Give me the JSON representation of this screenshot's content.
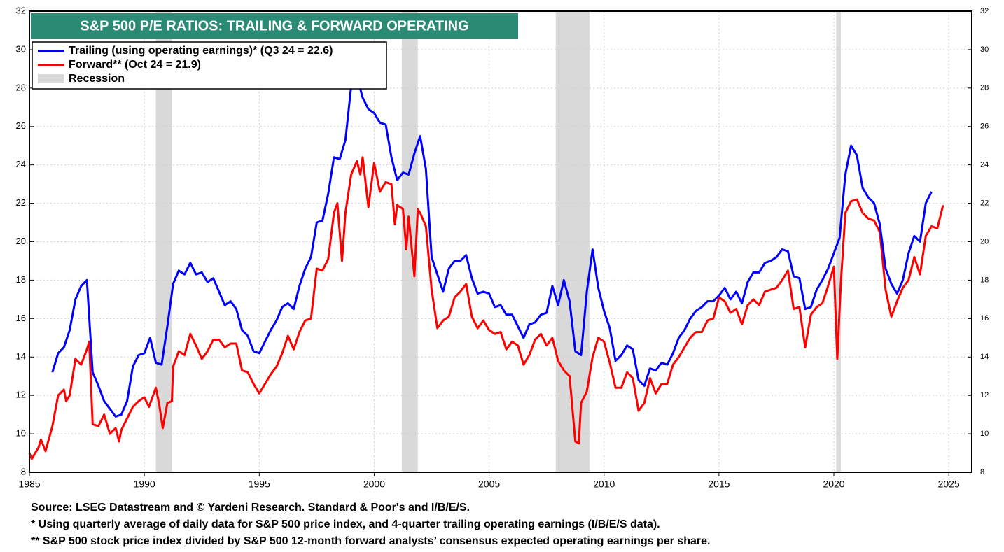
{
  "chart_data": {
    "type": "line",
    "title": "S&P 500 P/E RATIOS: TRAILING & FORWARD OPERATING",
    "recession_label": "Recession",
    "recession_color": "#d9d9d9",
    "recessions": [
      [
        1990.5,
        1991.2
      ],
      [
        2001.2,
        2001.9
      ],
      [
        2007.9,
        2009.4
      ],
      [
        2020.1,
        2020.3
      ]
    ],
    "notes": [
      "Source: LSEG Datastream and © Yardeni Research. Standard & Poor's and I/B/E/S.",
      "* Using quarterly average of daily data for S&P 500 price index, and 4-quarter trailing operating earnings (I/B/E/S data).",
      "** S&P 500 stock price index divided by S&P 500 12-month forward analysts’ consensus expected operating earnings per share."
    ],
    "xlim": [
      1985,
      2026
    ],
    "xticks": [
      1985,
      1990,
      1995,
      2000,
      2005,
      2010,
      2015,
      2020,
      2025
    ],
    "ylim": [
      8,
      32
    ],
    "yticks": [
      8,
      10,
      12,
      14,
      16,
      18,
      20,
      22,
      24,
      26,
      28,
      30,
      32
    ],
    "y2lim": [
      8,
      32
    ],
    "y2ticks": [
      8,
      10,
      12,
      14,
      16,
      18,
      20,
      22,
      24,
      26,
      28,
      30,
      32
    ],
    "grid": true,
    "series": [
      {
        "name": "Trailing (using operating earnings)* (Q3 24 = 22.6)",
        "color": "#0000ff",
        "x": [
          1986.0,
          1986.25,
          1986.5,
          1986.75,
          1987.0,
          1987.25,
          1987.5,
          1987.75,
          1988.0,
          1988.25,
          1988.5,
          1988.75,
          1989.0,
          1989.25,
          1989.5,
          1989.75,
          1990.0,
          1990.25,
          1990.5,
          1990.75,
          1991.0,
          1991.25,
          1991.5,
          1991.75,
          1992.0,
          1992.25,
          1992.5,
          1992.75,
          1993.0,
          1993.25,
          1993.5,
          1993.75,
          1994.0,
          1994.25,
          1994.5,
          1994.75,
          1995.0,
          1995.25,
          1995.5,
          1995.75,
          1996.0,
          1996.25,
          1996.5,
          1996.75,
          1997.0,
          1997.25,
          1997.5,
          1997.75,
          1998.0,
          1998.25,
          1998.5,
          1998.75,
          1999.0,
          1999.25,
          1999.5,
          1999.75,
          2000.0,
          2000.25,
          2000.5,
          2000.75,
          2001.0,
          2001.25,
          2001.5,
          2001.75,
          2002.0,
          2002.25,
          2002.5,
          2002.75,
          2003.0,
          2003.25,
          2003.5,
          2003.75,
          2004.0,
          2004.25,
          2004.5,
          2004.75,
          2005.0,
          2005.25,
          2005.5,
          2005.75,
          2006.0,
          2006.25,
          2006.5,
          2006.75,
          2007.0,
          2007.25,
          2007.5,
          2007.75,
          2008.0,
          2008.25,
          2008.5,
          2008.75,
          2009.0,
          2009.25,
          2009.5,
          2009.75,
          2010.0,
          2010.25,
          2010.5,
          2010.75,
          2011.0,
          2011.25,
          2011.5,
          2011.75,
          2012.0,
          2012.25,
          2012.5,
          2012.75,
          2013.0,
          2013.25,
          2013.5,
          2013.75,
          2014.0,
          2014.25,
          2014.5,
          2014.75,
          2015.0,
          2015.25,
          2015.5,
          2015.75,
          2016.0,
          2016.25,
          2016.5,
          2016.75,
          2017.0,
          2017.25,
          2017.5,
          2017.75,
          2018.0,
          2018.25,
          2018.5,
          2018.75,
          2019.0,
          2019.25,
          2019.5,
          2019.75,
          2020.0,
          2020.25,
          2020.5,
          2020.75,
          2021.0,
          2021.25,
          2021.5,
          2021.75,
          2022.0,
          2022.25,
          2022.5,
          2022.75,
          2023.0,
          2023.25,
          2023.5,
          2023.75,
          2024.0,
          2024.25
        ],
        "values": [
          13.2,
          14.2,
          14.5,
          15.4,
          17.0,
          17.7,
          18.0,
          13.2,
          12.5,
          11.7,
          11.3,
          10.9,
          11.0,
          11.7,
          13.5,
          14.1,
          14.2,
          15.0,
          13.7,
          13.6,
          15.6,
          17.8,
          18.5,
          18.3,
          18.9,
          18.3,
          18.4,
          17.9,
          18.1,
          17.4,
          16.7,
          16.9,
          16.5,
          15.4,
          15.1,
          14.3,
          14.2,
          14.8,
          15.4,
          15.9,
          16.6,
          16.8,
          16.5,
          17.7,
          18.6,
          19.2,
          21.0,
          21.1,
          22.5,
          24.4,
          24.3,
          25.3,
          28.1,
          28.6,
          27.5,
          26.9,
          26.7,
          26.2,
          26.1,
          24.4,
          23.2,
          23.6,
          23.5,
          24.6,
          25.5,
          23.8,
          19.2,
          18.3,
          17.4,
          18.6,
          19.0,
          19.0,
          19.3,
          18.1,
          17.3,
          17.4,
          17.3,
          16.6,
          16.7,
          16.2,
          16.2,
          15.6,
          15.0,
          15.7,
          15.8,
          16.2,
          16.3,
          17.7,
          16.7,
          18.0,
          16.9,
          14.3,
          14.1,
          17.4,
          19.6,
          17.6,
          16.4,
          15.5,
          13.8,
          14.1,
          14.6,
          14.4,
          12.8,
          12.5,
          13.4,
          13.3,
          13.7,
          13.6,
          14.2,
          15.0,
          15.4,
          16.0,
          16.4,
          16.6,
          16.9,
          16.9,
          17.2,
          17.6,
          17.0,
          17.4,
          16.8,
          17.9,
          18.4,
          18.4,
          18.9,
          19.0,
          19.2,
          19.6,
          19.5,
          18.2,
          18.1,
          16.5,
          16.6,
          17.5,
          18.0,
          18.6,
          19.4,
          20.2,
          23.5,
          25.0,
          24.5,
          22.8,
          22.3,
          22.0,
          20.9,
          18.6,
          17.8,
          17.3,
          18.0,
          19.4,
          20.3,
          20.0,
          22.0,
          22.6
        ]
      },
      {
        "name": "Forward** (Oct 24 = 21.9)",
        "color": "#ff0000",
        "x": [
          1985.0,
          1985.1,
          1985.4,
          1985.5,
          1985.7,
          1986.0,
          1986.25,
          1986.5,
          1986.6,
          1986.75,
          1987.0,
          1987.25,
          1987.5,
          1987.6,
          1987.75,
          1988.0,
          1988.25,
          1988.5,
          1988.75,
          1988.9,
          1989.0,
          1989.5,
          1989.75,
          1990.0,
          1990.2,
          1990.5,
          1990.65,
          1990.8,
          1991.0,
          1991.2,
          1991.25,
          1991.5,
          1991.75,
          1992.0,
          1992.25,
          1992.5,
          1992.75,
          1993.0,
          1993.25,
          1993.5,
          1993.75,
          1994.0,
          1994.25,
          1994.5,
          1994.75,
          1995.0,
          1995.25,
          1995.5,
          1995.75,
          1996.0,
          1996.25,
          1996.5,
          1996.75,
          1997.0,
          1997.25,
          1997.5,
          1997.75,
          1998.0,
          1998.25,
          1998.4,
          1998.6,
          1998.75,
          1999.0,
          1999.25,
          1999.4,
          1999.5,
          1999.75,
          2000.0,
          2000.25,
          2000.5,
          2000.75,
          2000.9,
          2001.0,
          2001.25,
          2001.4,
          2001.5,
          2001.75,
          2001.9,
          2002.0,
          2002.25,
          2002.5,
          2002.75,
          2003.0,
          2003.25,
          2003.5,
          2003.75,
          2004.0,
          2004.25,
          2004.5,
          2004.75,
          2005.0,
          2005.25,
          2005.5,
          2005.75,
          2006.0,
          2006.25,
          2006.5,
          2006.75,
          2007.0,
          2007.25,
          2007.5,
          2007.75,
          2008.0,
          2008.25,
          2008.5,
          2008.75,
          2008.9,
          2009.0,
          2009.25,
          2009.5,
          2009.75,
          2010.0,
          2010.25,
          2010.5,
          2010.75,
          2011.0,
          2011.25,
          2011.5,
          2011.75,
          2012.0,
          2012.25,
          2012.5,
          2012.75,
          2013.0,
          2013.25,
          2013.5,
          2013.75,
          2014.0,
          2014.25,
          2014.5,
          2014.75,
          2015.0,
          2015.25,
          2015.5,
          2015.75,
          2016.0,
          2016.25,
          2016.5,
          2016.75,
          2017.0,
          2017.25,
          2017.5,
          2017.75,
          2018.0,
          2018.25,
          2018.5,
          2018.75,
          2019.0,
          2019.25,
          2019.5,
          2019.75,
          2020.0,
          2020.15,
          2020.3,
          2020.5,
          2020.75,
          2021.0,
          2021.25,
          2021.5,
          2021.75,
          2022.0,
          2022.25,
          2022.5,
          2022.75,
          2023.0,
          2023.25,
          2023.5,
          2023.75,
          2024.0,
          2024.25,
          2024.5,
          2024.75
        ],
        "values": [
          9.0,
          8.7,
          9.3,
          9.7,
          9.1,
          10.4,
          12.0,
          12.3,
          11.7,
          12.0,
          13.9,
          13.6,
          14.4,
          14.8,
          10.5,
          10.4,
          11.0,
          10.0,
          10.3,
          9.6,
          10.2,
          11.4,
          11.7,
          11.9,
          11.4,
          12.4,
          11.5,
          10.3,
          11.6,
          11.7,
          13.5,
          14.3,
          14.1,
          15.2,
          14.6,
          13.9,
          14.3,
          14.9,
          14.9,
          14.5,
          14.7,
          14.7,
          13.3,
          13.2,
          12.6,
          12.1,
          12.6,
          13.1,
          13.5,
          14.2,
          15.1,
          14.4,
          15.3,
          15.9,
          16.0,
          18.6,
          18.5,
          19.1,
          21.5,
          22.0,
          19.0,
          21.5,
          23.5,
          24.2,
          23.5,
          24.4,
          21.8,
          24.1,
          22.6,
          23.1,
          23.0,
          20.9,
          21.9,
          21.7,
          19.6,
          21.3,
          18.2,
          21.7,
          21.5,
          20.8,
          17.5,
          15.5,
          15.9,
          16.1,
          17.1,
          17.4,
          17.8,
          16.1,
          15.5,
          15.9,
          15.4,
          15.2,
          15.3,
          14.4,
          14.8,
          14.6,
          13.6,
          14.1,
          14.9,
          15.2,
          14.6,
          15.0,
          13.8,
          13.3,
          13.0,
          9.6,
          9.5,
          11.6,
          12.2,
          14.0,
          15.0,
          14.8,
          13.7,
          12.4,
          12.4,
          13.2,
          12.9,
          11.2,
          11.6,
          12.9,
          12.1,
          12.6,
          12.6,
          13.6,
          14.0,
          14.5,
          15.0,
          15.3,
          15.3,
          15.9,
          16.0,
          17.1,
          16.9,
          16.3,
          16.5,
          15.7,
          16.7,
          17.0,
          16.7,
          17.4,
          17.5,
          17.6,
          18.0,
          18.5,
          16.5,
          16.6,
          14.5,
          16.2,
          16.6,
          16.8,
          17.7,
          18.7,
          13.9,
          17.8,
          21.5,
          22.1,
          22.2,
          21.5,
          21.2,
          21.1,
          20.5,
          17.5,
          16.1,
          16.9,
          17.6,
          18.0,
          19.2,
          18.3,
          20.3,
          20.8,
          20.7,
          21.9
        ]
      }
    ]
  }
}
